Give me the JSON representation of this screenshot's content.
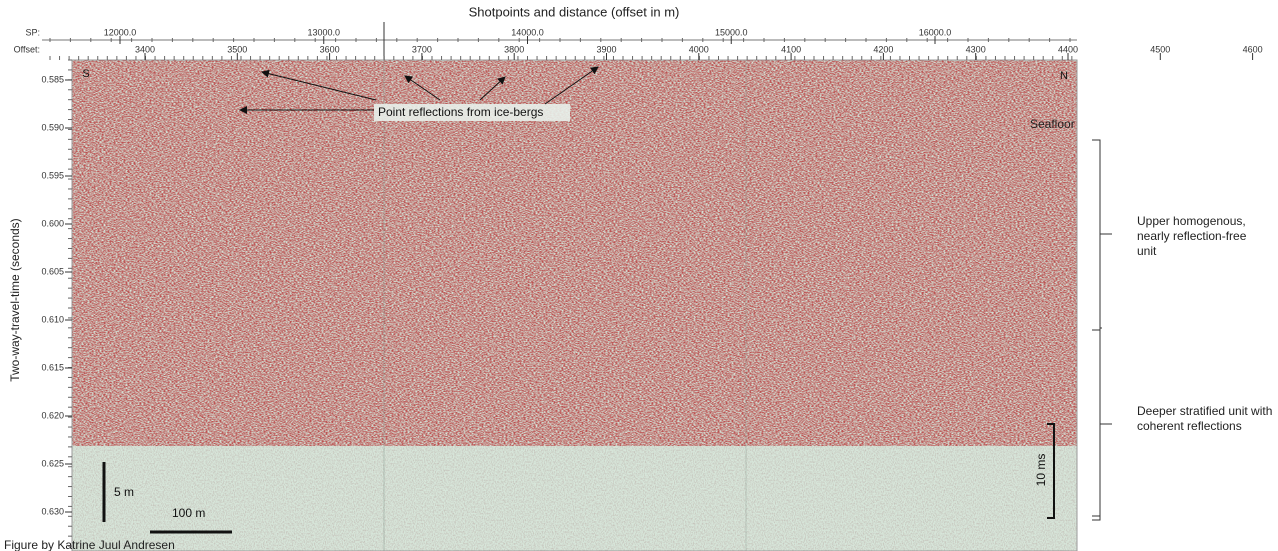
{
  "header": {
    "title": "Shotpoints and distance (offset in m)",
    "sp_label": "SP:",
    "offset_label": "Offset:",
    "sp_ticks": [
      "12000.0",
      "13000.0",
      "14000.0",
      "15000.0",
      "16000.0"
    ],
    "offset_ticks": [
      "3400",
      "3500",
      "3600",
      "3700",
      "3800",
      "3900",
      "4000",
      "4100",
      "4200",
      "4300",
      "4400",
      "4500",
      "4600"
    ]
  },
  "y_axis": {
    "label": "Two-way-travel-time (seconds)",
    "ticks": [
      "0.585",
      "0.590",
      "0.595",
      "0.600",
      "0.605",
      "0.610",
      "0.615",
      "0.620",
      "0.625",
      "0.630"
    ]
  },
  "annotations": {
    "south": "S",
    "north": "N",
    "icebergs": "Point reflections from ice-bergs",
    "seafloor": "Seafloor",
    "upper_unit": "Upper homogenous, nearly reflection-free unit",
    "deeper_unit": "Deeper stratified unit with coherent reflections",
    "vertical_scale": "5 m",
    "horizontal_scale": "100 m",
    "time_scale": "10 ms"
  },
  "credit": "Figure by Katrine Juul Andresen"
}
